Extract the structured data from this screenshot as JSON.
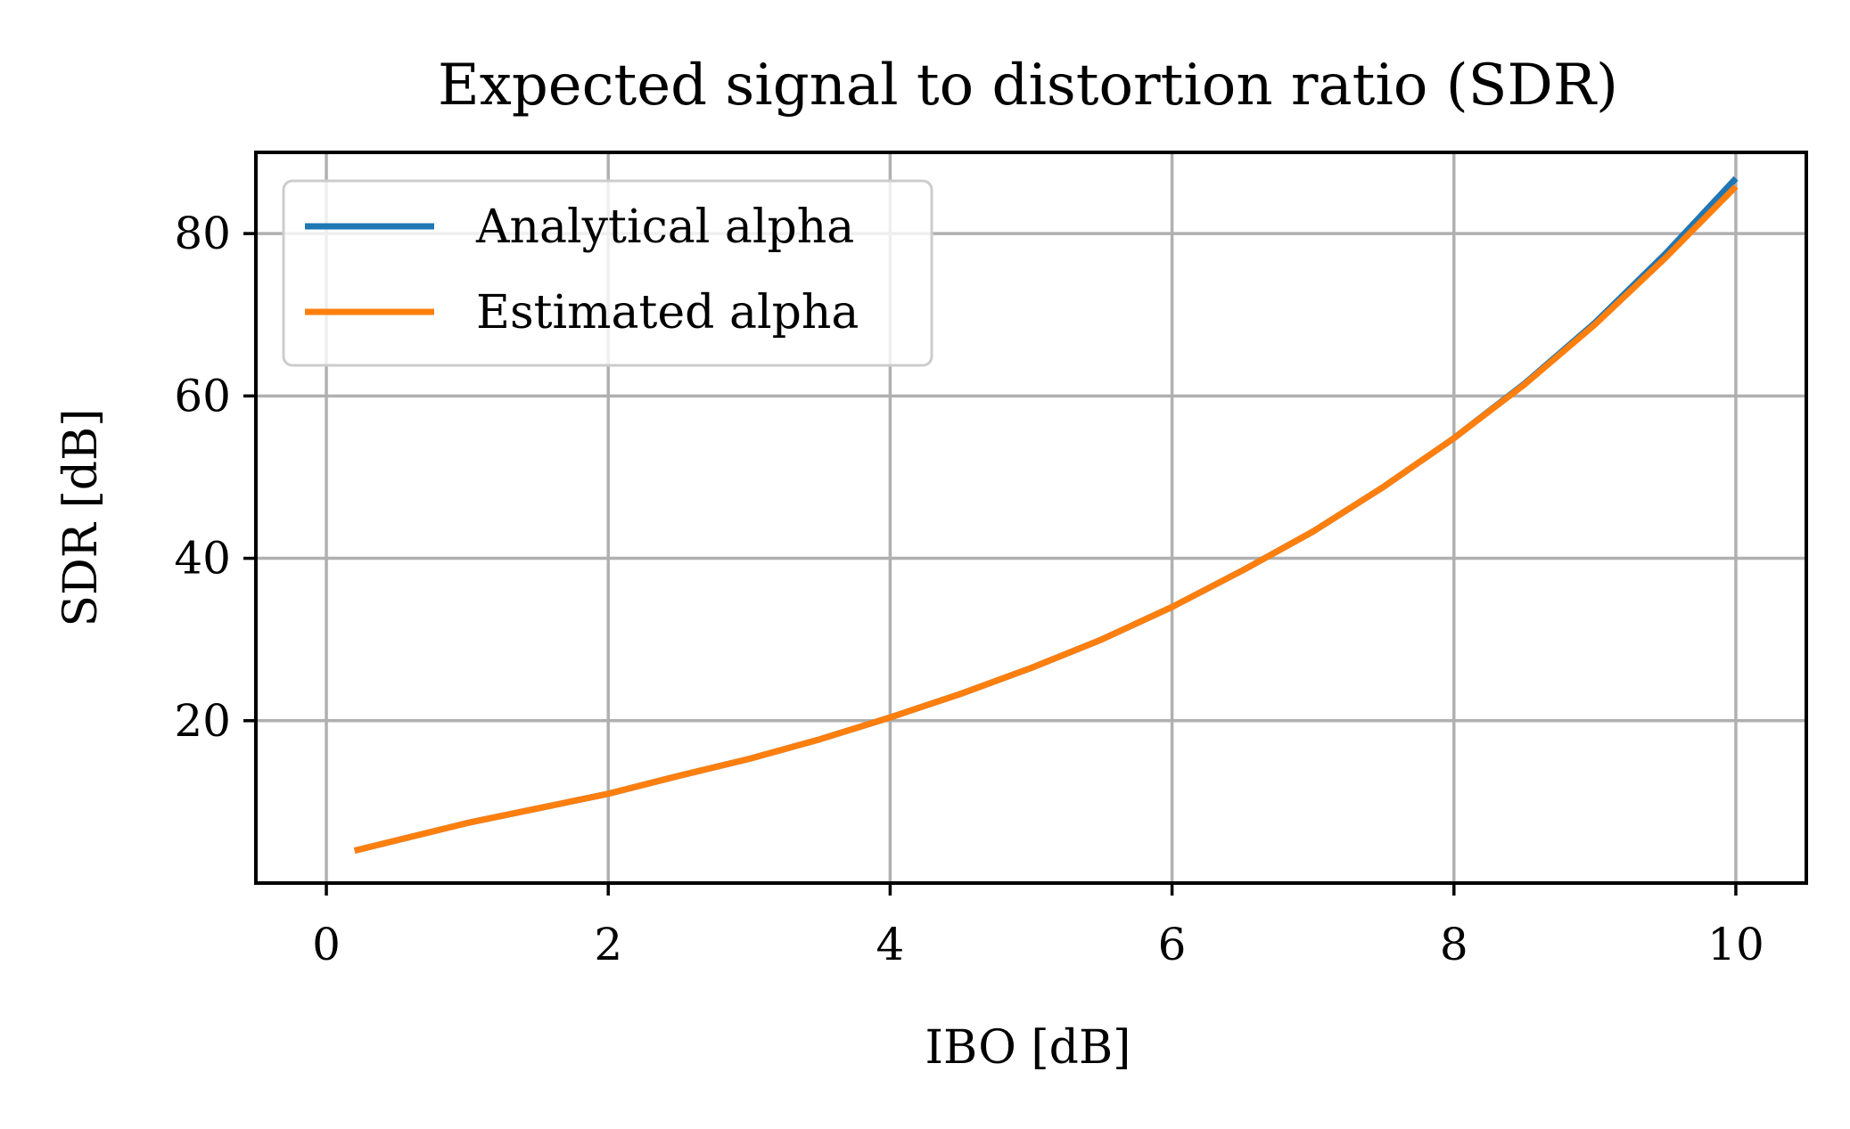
{
  "chart_data": {
    "type": "line",
    "title": "Expected signal to distortion ratio (SDR)",
    "xlabel": "IBO [dB]",
    "ylabel": "SDR [dB]",
    "xlim": [
      -0.5,
      10.5
    ],
    "ylim": [
      0,
      90
    ],
    "xticks": [
      0,
      2,
      4,
      6,
      8,
      10
    ],
    "yticks": [
      20,
      40,
      60,
      80
    ],
    "grid": true,
    "legend_position": "upper-left",
    "x": [
      0.2,
      0.6,
      1.0,
      1.5,
      2.0,
      2.5,
      3.0,
      3.5,
      4.0,
      4.5,
      5.0,
      5.5,
      6.0,
      6.5,
      7.0,
      7.5,
      8.0,
      8.5,
      9.0,
      9.5,
      10.0
    ],
    "series": [
      {
        "name": "Analytical alpha",
        "color": "#1f77b4",
        "values": [
          4.0,
          5.7,
          7.4,
          9.2,
          11.0,
          13.2,
          15.3,
          17.7,
          20.4,
          23.3,
          26.5,
          30.0,
          34.0,
          38.5,
          43.3,
          48.8,
          54.8,
          61.5,
          69.0,
          77.5,
          86.8
        ]
      },
      {
        "name": "Estimated alpha",
        "color": "#ff7f0e",
        "values": [
          4.0,
          5.7,
          7.4,
          9.2,
          11.0,
          13.2,
          15.3,
          17.7,
          20.4,
          23.3,
          26.5,
          30.0,
          34.0,
          38.5,
          43.3,
          48.8,
          54.8,
          61.4,
          68.8,
          77.0,
          85.8
        ]
      }
    ]
  }
}
